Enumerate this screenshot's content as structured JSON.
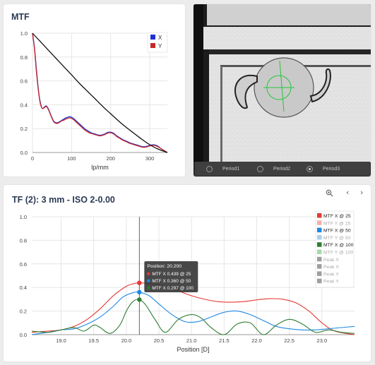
{
  "mtf_panel": {
    "title": "MTF",
    "legend": [
      {
        "label": "X",
        "color": "#1f2fd6"
      },
      {
        "label": "Y",
        "color": "#c62828"
      }
    ]
  },
  "image_panel": {
    "radios": [
      {
        "label": "Period1",
        "selected": false
      },
      {
        "label": "Period2",
        "selected": false
      },
      {
        "label": "Period3",
        "selected": true
      }
    ]
  },
  "tf_panel": {
    "title": "TF (2): 3 mm - ISO 2-0.00",
    "controls": {
      "zoom_icon": "search-icon",
      "prev_icon": "chevron-left-icon",
      "next_icon": "chevron-right-icon"
    },
    "tooltip": {
      "header": "Position: 20.200",
      "rows": [
        {
          "text": "MTF X 0.439 @ 25",
          "color": "#e53935"
        },
        {
          "text": "MTF X 0.360 @ 50",
          "color": "#1e88e5"
        },
        {
          "text": "MTF X 0.297 @ 100",
          "color": "#2e7d32"
        }
      ]
    },
    "legend": [
      {
        "label": "MTF X @ 25",
        "color": "#e53935",
        "active": true
      },
      {
        "label": "MTF Y @ 25",
        "color": "#f2b0ad",
        "active": false
      },
      {
        "label": "MTF X @ 50",
        "color": "#1e88e5",
        "active": true
      },
      {
        "label": "MTF Y @ 50",
        "color": "#a9cff2",
        "active": false
      },
      {
        "label": "MTF X @ 100",
        "color": "#2e7d32",
        "active": true
      },
      {
        "label": "MTF Y @ 100",
        "color": "#a9d8ab",
        "active": false
      },
      {
        "label": "Peak X",
        "color": "#9e9e9e",
        "active": false
      },
      {
        "label": "Peak X",
        "color": "#9e9e9e",
        "active": false
      },
      {
        "label": "Peak Y",
        "color": "#9e9e9e",
        "active": false
      },
      {
        "label": "Peak Y",
        "color": "#9e9e9e",
        "active": false
      }
    ]
  },
  "chart_data": [
    {
      "type": "line",
      "title": "MTF",
      "xlabel": "lp/mm",
      "ylabel": "",
      "xlim": [
        0,
        345
      ],
      "ylim": [
        0,
        1.0
      ],
      "xticks": [
        "0",
        "100",
        "200",
        "300"
      ],
      "yticks": [
        "0.0",
        "0.2",
        "0.4",
        "0.6",
        "0.8",
        "1.0"
      ],
      "grid": true,
      "legend_position": "top-right",
      "series": [
        {
          "name": "X",
          "color": "#1f2fd6",
          "x": [
            0,
            5,
            10,
            15,
            20,
            25,
            30,
            35,
            40,
            45,
            50,
            55,
            60,
            65,
            70,
            75,
            80,
            85,
            90,
            95,
            100,
            105,
            110,
            115,
            120,
            125,
            130,
            135,
            140,
            145,
            150,
            155,
            160,
            165,
            170,
            175,
            180,
            185,
            190,
            195,
            200,
            205,
            210,
            215,
            220,
            225,
            230,
            240,
            250,
            260,
            270,
            280,
            290,
            300,
            310,
            320,
            330,
            345
          ],
          "y": [
            1.0,
            0.88,
            0.7,
            0.53,
            0.42,
            0.37,
            0.38,
            0.39,
            0.37,
            0.33,
            0.29,
            0.26,
            0.25,
            0.25,
            0.26,
            0.27,
            0.28,
            0.29,
            0.295,
            0.3,
            0.295,
            0.285,
            0.27,
            0.255,
            0.24,
            0.225,
            0.21,
            0.195,
            0.185,
            0.175,
            0.165,
            0.16,
            0.155,
            0.15,
            0.145,
            0.145,
            0.15,
            0.155,
            0.165,
            0.17,
            0.17,
            0.165,
            0.155,
            0.14,
            0.13,
            0.12,
            0.11,
            0.095,
            0.08,
            0.07,
            0.06,
            0.05,
            0.05,
            0.06,
            0.065,
            0.055,
            0.03,
            0.0
          ]
        },
        {
          "name": "Y",
          "color": "#c62828",
          "x": [
            0,
            5,
            10,
            15,
            20,
            25,
            30,
            35,
            40,
            45,
            50,
            55,
            60,
            65,
            70,
            75,
            80,
            85,
            90,
            95,
            100,
            105,
            110,
            115,
            120,
            125,
            130,
            135,
            140,
            145,
            150,
            155,
            160,
            165,
            170,
            175,
            180,
            185,
            190,
            195,
            200,
            205,
            210,
            215,
            220,
            225,
            230,
            240,
            250,
            260,
            270,
            280,
            290,
            300,
            310,
            320,
            330,
            345
          ],
          "y": [
            1.0,
            0.87,
            0.68,
            0.52,
            0.41,
            0.37,
            0.375,
            0.385,
            0.365,
            0.325,
            0.285,
            0.255,
            0.245,
            0.245,
            0.255,
            0.265,
            0.27,
            0.28,
            0.285,
            0.29,
            0.285,
            0.275,
            0.26,
            0.245,
            0.23,
            0.215,
            0.2,
            0.185,
            0.175,
            0.165,
            0.16,
            0.155,
            0.15,
            0.145,
            0.14,
            0.14,
            0.145,
            0.15,
            0.16,
            0.165,
            0.165,
            0.16,
            0.15,
            0.135,
            0.125,
            0.115,
            0.105,
            0.09,
            0.075,
            0.065,
            0.055,
            0.045,
            0.045,
            0.055,
            0.06,
            0.05,
            0.03,
            0.0
          ]
        },
        {
          "name": "",
          "color": "#111111",
          "x": [
            0,
            20,
            40,
            60,
            80,
            100,
            120,
            140,
            160,
            180,
            200,
            220,
            240,
            260,
            280,
            300,
            320,
            345
          ],
          "y": [
            1.0,
            0.93,
            0.86,
            0.79,
            0.72,
            0.65,
            0.58,
            0.515,
            0.45,
            0.385,
            0.325,
            0.265,
            0.21,
            0.16,
            0.11,
            0.065,
            0.03,
            0.0
          ]
        }
      ]
    },
    {
      "type": "line",
      "title": "TF (2): 3 mm - ISO 2-0.00",
      "xlabel": "Position [D]",
      "ylabel": "",
      "xlim": [
        18.55,
        23.5
      ],
      "ylim": [
        0,
        1.0
      ],
      "xticks": [
        "19.0",
        "19.5",
        "20.0",
        "20.5",
        "21.0",
        "21.5",
        "22.0",
        "22.5",
        "23.0"
      ],
      "yticks": [
        "0.0",
        "0.2",
        "0.4",
        "0.6",
        "0.8",
        "1.0"
      ],
      "grid": true,
      "legend_position": "right",
      "cursor_x": 20.2,
      "series": [
        {
          "name": "MTF X @ 25",
          "color": "#e53935",
          "x": [
            18.55,
            18.8,
            19.0,
            19.2,
            19.4,
            19.6,
            19.8,
            20.0,
            20.1,
            20.2,
            20.4,
            20.6,
            20.8,
            21.0,
            21.2,
            21.4,
            21.6,
            21.8,
            22.0,
            22.2,
            22.4,
            22.6,
            22.8,
            23.0,
            23.2,
            23.5
          ],
          "y": [
            0.02,
            0.03,
            0.04,
            0.07,
            0.13,
            0.22,
            0.33,
            0.41,
            0.43,
            0.439,
            0.43,
            0.41,
            0.37,
            0.33,
            0.3,
            0.28,
            0.275,
            0.28,
            0.295,
            0.305,
            0.3,
            0.27,
            0.2,
            0.1,
            0.03,
            0.0
          ]
        },
        {
          "name": "MTF X @ 50",
          "color": "#1e88e5",
          "x": [
            18.55,
            18.8,
            19.0,
            19.2,
            19.4,
            19.6,
            19.8,
            19.95,
            20.1,
            20.2,
            20.35,
            20.5,
            20.7,
            20.9,
            21.1,
            21.3,
            21.5,
            21.7,
            21.9,
            22.1,
            22.3,
            22.5,
            22.7,
            22.9,
            23.1,
            23.3,
            23.5
          ],
          "y": [
            0.0,
            0.02,
            0.04,
            0.05,
            0.09,
            0.15,
            0.24,
            0.32,
            0.355,
            0.36,
            0.33,
            0.26,
            0.17,
            0.11,
            0.11,
            0.15,
            0.19,
            0.2,
            0.17,
            0.12,
            0.07,
            0.05,
            0.04,
            0.04,
            0.05,
            0.06,
            0.07
          ]
        },
        {
          "name": "MTF X @ 100",
          "color": "#2e7d32",
          "x": [
            18.55,
            18.8,
            19.0,
            19.2,
            19.35,
            19.5,
            19.6,
            19.75,
            19.9,
            20.0,
            20.1,
            20.2,
            20.3,
            20.45,
            20.6,
            20.8,
            21.0,
            21.15,
            21.3,
            21.5,
            21.7,
            21.9,
            22.1,
            22.3,
            22.5,
            22.7,
            22.9,
            23.1,
            23.3,
            23.5
          ],
          "y": [
            0.03,
            0.02,
            0.04,
            0.06,
            0.03,
            0.08,
            0.06,
            0.01,
            0.08,
            0.2,
            0.28,
            0.297,
            0.25,
            0.12,
            0.02,
            0.13,
            0.17,
            0.14,
            0.06,
            0.0,
            0.09,
            0.1,
            0.0,
            0.08,
            0.13,
            0.09,
            0.02,
            0.04,
            0.02,
            0.01
          ]
        }
      ]
    }
  ]
}
